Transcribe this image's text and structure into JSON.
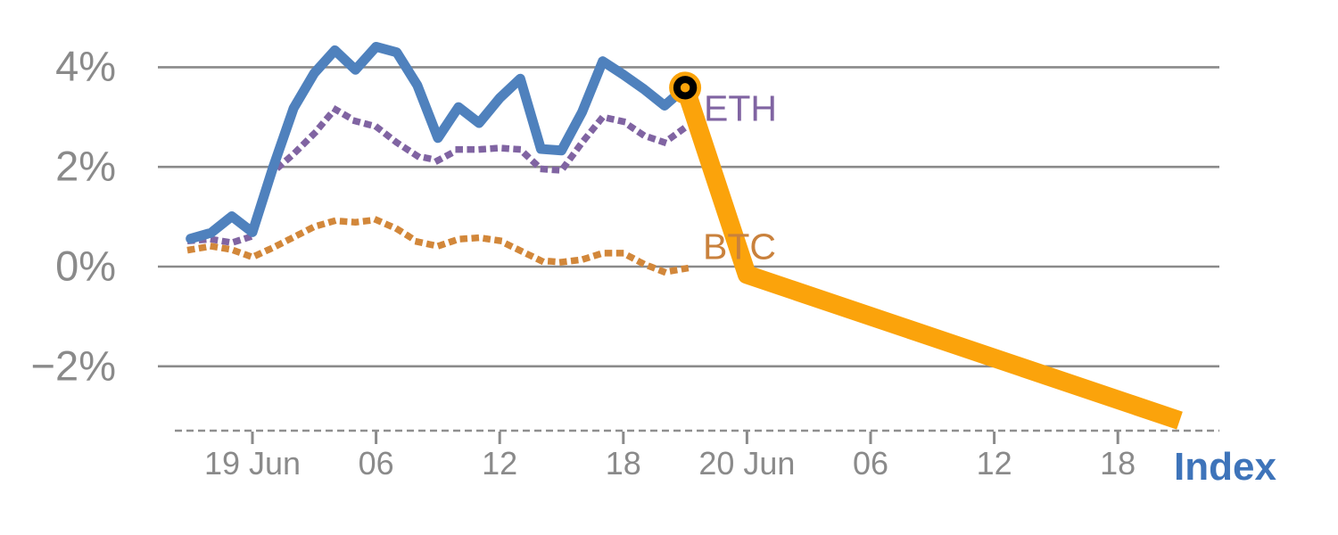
{
  "chart_data": {
    "type": "line",
    "title": "",
    "description_visible_elements": "Hourly percentage-change lines for Index (solid blue), ETH (dotted purple), BTC (dotted orange) ending at a highlighted marker, then a thick orange Index continuation dropping to about -3.1%",
    "x_axis": {
      "unit": "time (hours, hourly points)",
      "start_time": "18 Jun 21:00",
      "tick_labels": [
        "19 Jun",
        "06",
        "12",
        "18",
        "20 Jun",
        "06",
        "12",
        "18"
      ],
      "tick_hours": [
        0,
        6,
        12,
        18,
        24,
        30,
        36,
        42
      ]
    },
    "y_axis": {
      "unit": "%",
      "tick_labels": [
        "4%",
        "2%",
        "0%",
        "−2%"
      ],
      "tick_values": [
        4,
        2,
        0,
        -2
      ],
      "ylim": [
        -3.3,
        4.7
      ],
      "grid": "horizontal solid gray"
    },
    "series": [
      {
        "id": "btc",
        "name": "BTC",
        "color": "#d2873a",
        "style": "dotted",
        "hours": [
          -3,
          -2,
          -1,
          0,
          1,
          2,
          3,
          4,
          5,
          6,
          7,
          8,
          9,
          10,
          11,
          12,
          13,
          14,
          15,
          16,
          17,
          18,
          19,
          20,
          21
        ],
        "values": [
          0.34,
          0.41,
          0.34,
          0.19,
          0.38,
          0.59,
          0.8,
          0.92,
          0.89,
          0.94,
          0.76,
          0.5,
          0.41,
          0.55,
          0.58,
          0.52,
          0.32,
          0.12,
          0.09,
          0.14,
          0.27,
          0.27,
          0.05,
          -0.11,
          -0.04
        ]
      },
      {
        "id": "eth",
        "name": "ETH",
        "color": "#8064a2",
        "style": "dotted",
        "hours": [
          -3,
          -2,
          -1,
          0,
          1,
          2,
          3,
          4,
          5,
          6,
          7,
          8,
          9,
          10,
          11,
          12,
          13,
          14,
          15,
          16,
          17,
          18,
          19,
          20,
          21
        ],
        "values": [
          0.52,
          0.55,
          0.48,
          0.61,
          1.9,
          2.26,
          2.67,
          3.16,
          2.92,
          2.81,
          2.49,
          2.22,
          2.13,
          2.35,
          2.35,
          2.38,
          2.35,
          1.96,
          1.93,
          2.49,
          3.0,
          2.91,
          2.63,
          2.49,
          2.79
        ]
      },
      {
        "id": "index",
        "name": "Index",
        "color": "#4f81bd",
        "style": "solid",
        "hours": [
          -3,
          -2,
          -1,
          0,
          1,
          2,
          3,
          4,
          5,
          6,
          7,
          8,
          9,
          10,
          11,
          12,
          13,
          14,
          15,
          16,
          17,
          18,
          19,
          20,
          21
        ],
        "values": [
          0.56,
          0.68,
          1.01,
          0.69,
          1.99,
          3.18,
          3.88,
          4.34,
          3.95,
          4.41,
          4.3,
          3.64,
          2.58,
          3.2,
          2.88,
          3.38,
          3.77,
          2.36,
          2.33,
          3.1,
          4.12,
          3.85,
          3.56,
          3.23,
          3.59
        ]
      },
      {
        "id": "index-projection",
        "name": "Index (orange continuation)",
        "color": "#fba30b",
        "style": "projection",
        "hours": [
          21,
          24,
          45
        ],
        "values": [
          3.59,
          -0.16,
          -3.09
        ]
      }
    ],
    "marker": {
      "series": "Index",
      "hour": 21,
      "value": 3.59,
      "fill": "#fba30b",
      "ring_color": "#000000"
    },
    "labels": {
      "eth": "ETH",
      "btc": "BTC",
      "index": "Index"
    },
    "label_colors": {
      "eth": "#8064a2",
      "btc": "#c9813c",
      "index": "#3e74ba"
    },
    "legend_position": "inline labels next to lines"
  }
}
